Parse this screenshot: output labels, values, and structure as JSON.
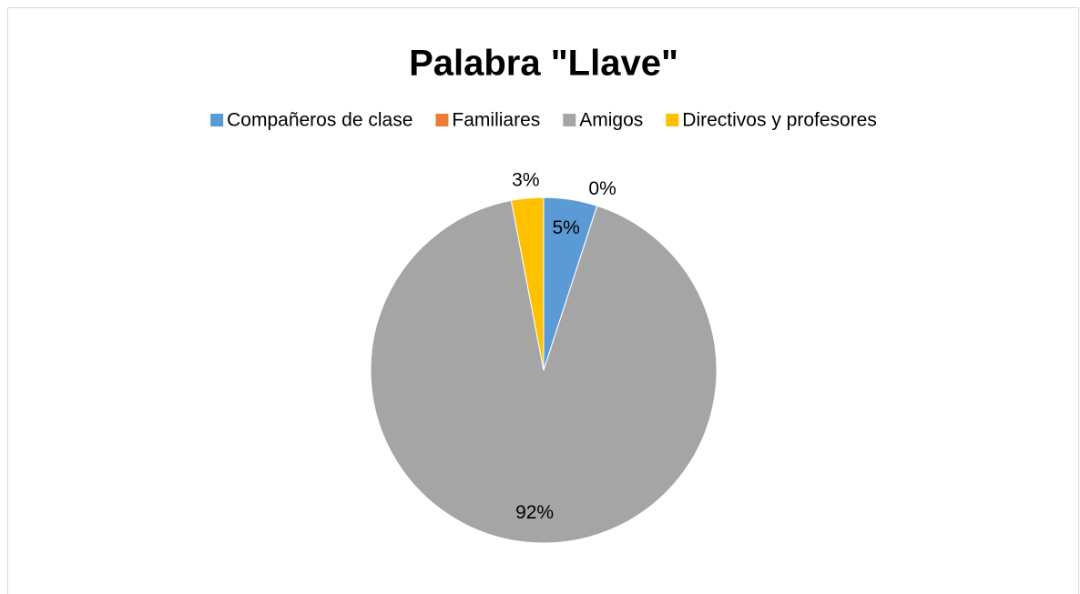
{
  "chart_data": {
    "type": "pie",
    "title": "Palabra \"Llave\"",
    "categories": [
      "Compañeros de clase",
      "Familiares",
      "Amigos",
      "Directivos y profesores"
    ],
    "values": [
      5,
      0,
      92,
      3
    ],
    "value_labels": [
      "5%",
      "0%",
      "92%",
      "3%"
    ],
    "colors": [
      "#5b9bd5",
      "#ed7d31",
      "#a5a5a5",
      "#ffc000"
    ],
    "legend": "top"
  }
}
